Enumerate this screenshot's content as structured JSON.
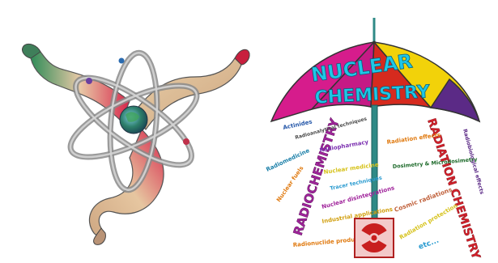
{
  "umbrella": {
    "title_line1": "NUCLEAR",
    "title_line2": "CHEMISTRY"
  },
  "left_branch": {
    "heading": "RADIOCHEMISTRY",
    "topics": [
      "Actinides",
      "Radioanalytical techniques",
      "Radiopharmacy",
      "Radiomedicine",
      "Nuclear fuels",
      "Nuclear medicine",
      "Tracer techniques",
      "Nuclear disintegrations",
      "Industrial applications",
      "Radionuclide production"
    ]
  },
  "right_branch": {
    "heading": "RADIATION CHEMISTRY",
    "topics": [
      "Radiobiological effects",
      "Radiation effects",
      "Dosimetry & Microdosimetry",
      "Cosmic radiations",
      "Radiation protection",
      "etc..."
    ]
  },
  "colors": {
    "umbrella_magenta": "#d61c8c",
    "umbrella_red": "#d62a1e",
    "umbrella_yellow": "#f2d20a",
    "umbrella_purple": "#5b2a86",
    "title_cyan": "#1fc7e6",
    "handle_teal": "#2f8a86",
    "radiochem_purple": "#a0249b",
    "radiation_chem_red": "#d2202a"
  }
}
